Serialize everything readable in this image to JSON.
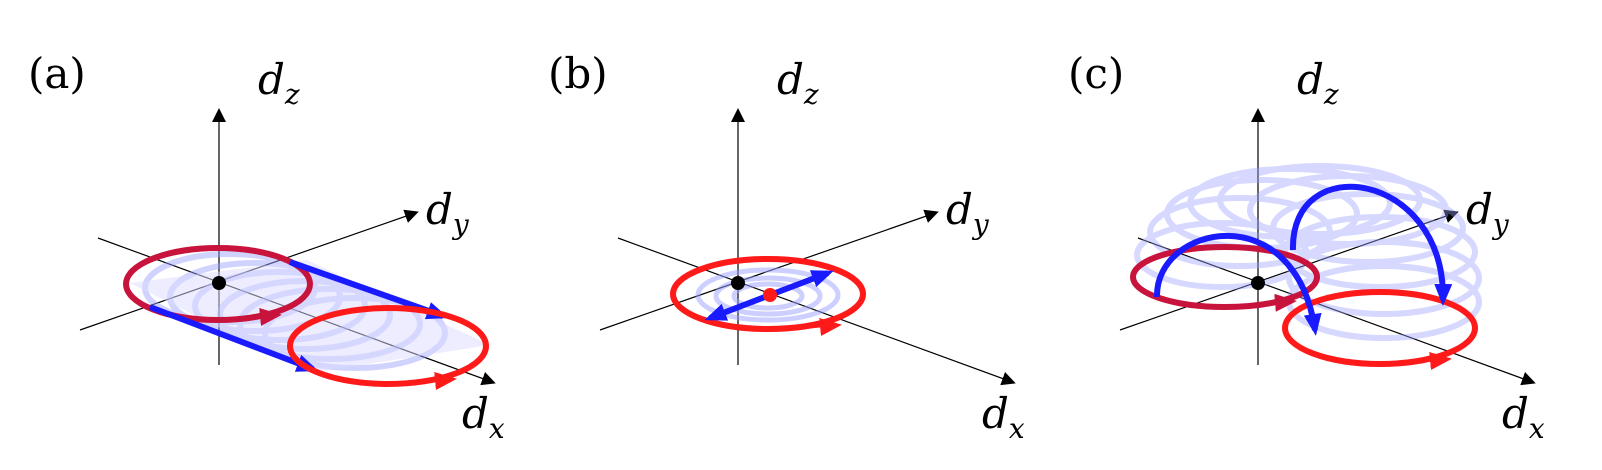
{
  "panels": [
    {
      "label": "(a)",
      "axes": {
        "z": "d",
        "z_sub": "z",
        "y": "d",
        "y_sub": "y",
        "x": "d",
        "x_sub": "x"
      }
    },
    {
      "label": "(b)",
      "axes": {
        "z": "d",
        "z_sub": "z",
        "y": "d",
        "y_sub": "y",
        "x": "d",
        "x_sub": "x"
      }
    },
    {
      "label": "(c)",
      "axes": {
        "z": "d",
        "z_sub": "z",
        "y": "d",
        "y_sub": "y",
        "x": "d",
        "x_sub": "x"
      }
    }
  ],
  "colors": {
    "loop_red": "#ff1a1a",
    "loop_darkred": "#c8143c",
    "arrow_blue": "#1a1aff",
    "ghost_blue": "#9aa0ff",
    "axis": "#000000"
  }
}
